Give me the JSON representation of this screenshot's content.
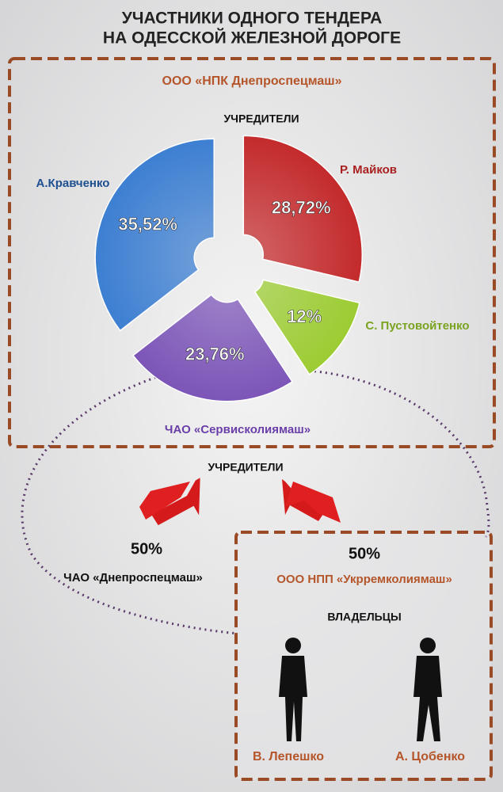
{
  "title": [
    "УЧАСТНИКИ ОДНОГО ТЕНДЕРА",
    "НА ОДЕССКОЙ ЖЕЛЕЗНОЙ ДОРОГЕ"
  ],
  "chart_data": {
    "type": "pie",
    "title": "ООО «НПК Днепроспецмаш»",
    "subtitle": "УЧРЕДИТЕЛИ",
    "categories": [
      "Р. Майков",
      "С. Пустовойтенко",
      "ЧАО «Сервисколиямаш»",
      "А.Кравченко"
    ],
    "values": [
      28.72,
      12,
      23.76,
      35.52
    ],
    "value_labels": [
      "28,72%",
      "12%",
      "23,76%",
      "35,52%"
    ],
    "colors": [
      "#c42a2c",
      "#9ccc32",
      "#7c55b8",
      "#3d7fd2"
    ]
  },
  "founders": {
    "label": "УЧРЕДИТЕЛИ",
    "left": {
      "share": "50%",
      "name": "ЧАО «Днепроспецмаш»"
    },
    "right": {
      "share": "50%",
      "name": "ООО НПП «Укрремколиямаш»",
      "owners_label": "ВЛАДЕЛЬЦЫ",
      "owners": [
        "В. Лепешко",
        "А. Цобенко"
      ]
    }
  }
}
